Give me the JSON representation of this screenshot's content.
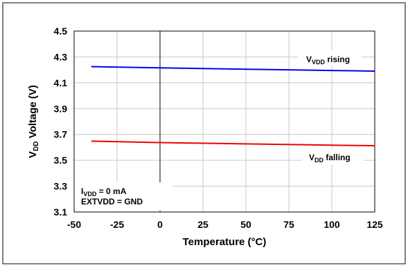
{
  "chart_data": {
    "type": "line",
    "xlabel": "Temperature (°C)",
    "ylabel_main": "V",
    "ylabel_sub": "DD",
    "ylabel_rest": " Voltage (V)",
    "xlim": [
      -50,
      125
    ],
    "ylim": [
      3.1,
      4.5
    ],
    "x_ticks": [
      "-50",
      "-25",
      "0",
      "25",
      "50",
      "75",
      "100",
      "125"
    ],
    "y_ticks": [
      "3.1",
      "3.3",
      "3.5",
      "3.7",
      "3.9",
      "4.1",
      "4.3",
      "4.5"
    ],
    "grid": true,
    "series": [
      {
        "label_main": "V",
        "label_sub": "VDD",
        "label_rest": " rising",
        "color": "#0000ee",
        "x": [
          -40,
          0,
          25,
          50,
          75,
          100,
          125
        ],
        "y": [
          4.225,
          4.215,
          4.21,
          4.205,
          4.2,
          4.195,
          4.19
        ]
      },
      {
        "label_main": "V",
        "label_sub": "DD",
        "label_rest": " falling",
        "color": "#ee0000",
        "x": [
          -40,
          0,
          25,
          50,
          75,
          100,
          125
        ],
        "y": [
          3.648,
          3.637,
          3.632,
          3.627,
          3.622,
          3.617,
          3.613
        ]
      }
    ],
    "annotations": [
      {
        "main": "I",
        "sub": "VDD",
        "rest": " = 0 mA"
      },
      {
        "main": "EXTVDD = GND",
        "sub": "",
        "rest": ""
      }
    ]
  }
}
